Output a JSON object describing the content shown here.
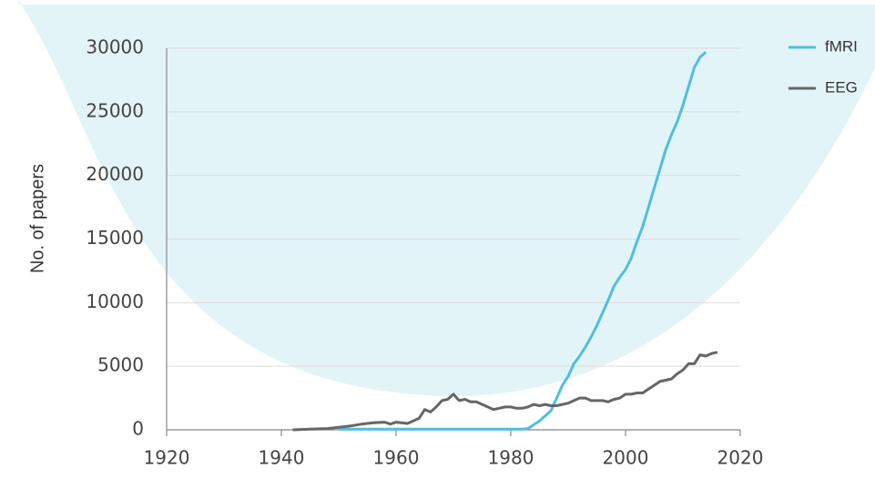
{
  "chart_data": {
    "type": "line",
    "ylabel": "No. of papers",
    "xlim": [
      1920,
      2020
    ],
    "xticks": [
      1920,
      1940,
      1960,
      1980,
      2000,
      2020
    ],
    "ylim": [
      0,
      30000
    ],
    "yticks": [
      0,
      5000,
      10000,
      15000,
      20000,
      25000,
      30000
    ],
    "grid": true,
    "legend": "upper right",
    "series": [
      {
        "name": "fMRI",
        "color": "#4fbfdc",
        "x": [
          1950,
          1955,
          1960,
          1965,
          1970,
          1975,
          1980,
          1982,
          1983,
          1984,
          1985,
          1986,
          1987,
          1988,
          1989,
          1990,
          1991,
          1992,
          1993,
          1994,
          1995,
          1996,
          1997,
          1998,
          1999,
          2000,
          2001,
          2002,
          2003,
          2004,
          2005,
          2006,
          2007,
          2008,
          2009,
          2010,
          2011,
          2012,
          2013,
          2014
        ],
        "values": [
          50,
          50,
          50,
          50,
          50,
          50,
          50,
          50,
          100,
          400,
          700,
          1100,
          1500,
          2500,
          3500,
          4200,
          5200,
          5800,
          6500,
          7300,
          8200,
          9200,
          10200,
          11300,
          12000,
          12600,
          13500,
          14800,
          16000,
          17500,
          19000,
          20500,
          22000,
          23200,
          24200,
          25500,
          27000,
          28500,
          29300,
          29700
        ]
      },
      {
        "name": "EEG",
        "color": "#666666",
        "x": [
          1942,
          1945,
          1948,
          1950,
          1952,
          1954,
          1956,
          1958,
          1959,
          1960,
          1962,
          1963,
          1964,
          1965,
          1966,
          1967,
          1968,
          1969,
          1970,
          1971,
          1972,
          1973,
          1974,
          1975,
          1976,
          1977,
          1978,
          1979,
          1980,
          1981,
          1982,
          1983,
          1984,
          1985,
          1986,
          1987,
          1988,
          1989,
          1990,
          1991,
          1992,
          1993,
          1994,
          1995,
          1996,
          1997,
          1998,
          1999,
          2000,
          2001,
          2002,
          2003,
          2004,
          2005,
          2006,
          2007,
          2008,
          2009,
          2010,
          2011,
          2012,
          2013,
          2014,
          2015,
          2016
        ],
        "values": [
          0,
          50,
          100,
          200,
          300,
          450,
          550,
          600,
          450,
          600,
          500,
          700,
          900,
          1600,
          1400,
          1800,
          2300,
          2400,
          2800,
          2300,
          2400,
          2200,
          2200,
          2000,
          1800,
          1600,
          1700,
          1800,
          1800,
          1700,
          1700,
          1800,
          2000,
          1900,
          2000,
          1900,
          1900,
          2000,
          2100,
          2300,
          2500,
          2500,
          2300,
          2300,
          2300,
          2200,
          2400,
          2500,
          2800,
          2800,
          2900,
          2900,
          3200,
          3500,
          3800,
          3900,
          4000,
          4400,
          4700,
          5200,
          5200,
          5900,
          5800,
          6000,
          6100
        ]
      }
    ]
  }
}
